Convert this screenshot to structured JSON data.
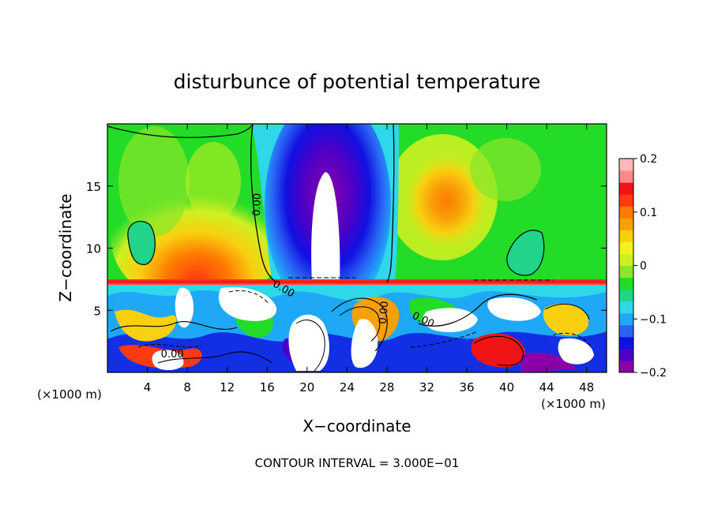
{
  "chart_data": {
    "type": "heatmap",
    "title": "disturbunce of potential temperature",
    "xlabel": "X−coordinate",
    "ylabel": "Z−coordinate",
    "x_unit_left": "(×1000 m)",
    "x_unit_right": "(×1000 m)",
    "xlim": [
      0,
      50
    ],
    "ylim": [
      0,
      20
    ],
    "xticks": [
      4,
      8,
      12,
      16,
      20,
      24,
      28,
      32,
      36,
      40,
      44,
      48
    ],
    "yticks": [
      5,
      10,
      15
    ],
    "colorbar": {
      "range": [
        -0.2,
        0.2
      ],
      "ticks": [
        0.2,
        0.1,
        0,
        -0.1,
        -0.2
      ],
      "tick_labels": [
        "0.2",
        "0.1",
        "0",
        "−0.1",
        "−0.2"
      ],
      "colors": [
        "#8a00a8",
        "#4b00c8",
        "#1010e0",
        "#2a62f5",
        "#1fa8f5",
        "#2fd8e8",
        "#22d48a",
        "#22dc28",
        "#8ae628",
        "#cdf020",
        "#f2f21e",
        "#f8d010",
        "#f8a008",
        "#ff7a00",
        "#ff3a10",
        "#f01414",
        "#ff8888",
        "#ffb8b8"
      ]
    },
    "contour_labels": [
      {
        "text": "0.00",
        "x": 15.3,
        "z": 13.5,
        "rotate": -88
      },
      {
        "text": "0.00",
        "x": 17.5,
        "z": 6.5,
        "rotate": 30
      },
      {
        "text": "0.00",
        "x": 28.0,
        "z": 4.8,
        "rotate": -85
      },
      {
        "text": "0.00",
        "x": 31.5,
        "z": 4.0,
        "rotate": 25
      },
      {
        "text": "0.00",
        "x": 6.5,
        "z": 1.2,
        "rotate": 0
      }
    ],
    "contour_interval_text": "CONTOUR INTERVAL = 3.000E−01"
  }
}
